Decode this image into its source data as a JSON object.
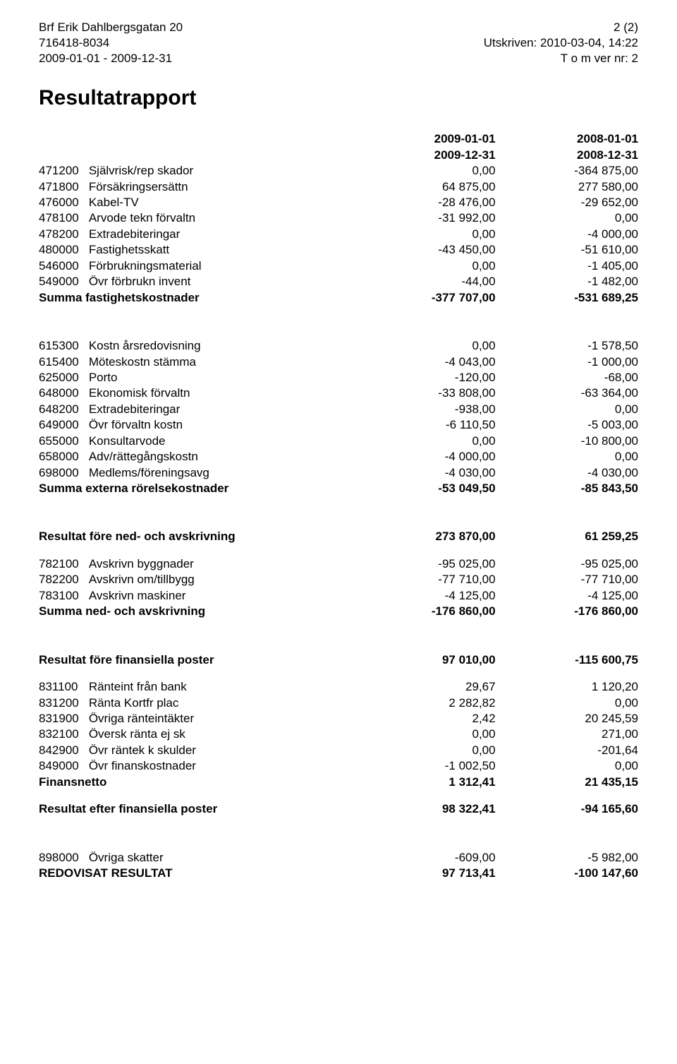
{
  "header": {
    "left1": "Brf Erik Dahlbergsgatan 20",
    "left2": "716418-8034",
    "left3": "2009-01-01 - 2009-12-31",
    "right1": "2 (2)",
    "right2": "Utskriven: 2010-03-04, 14:22",
    "right3": "T o m ver nr: 2"
  },
  "title": "Resultatrapport",
  "period_headers": {
    "col1_top": "2009-01-01",
    "col1_bot": "2009-12-31",
    "col2_top": "2008-01-01",
    "col2_bot": "2008-12-31"
  },
  "group1": {
    "rows": [
      {
        "code": "471200",
        "desc": "Självrisk/rep skador",
        "v1": "0,00",
        "v2": "-364 875,00"
      },
      {
        "code": "471800",
        "desc": "Försäkringsersättn",
        "v1": "64 875,00",
        "v2": "277 580,00"
      },
      {
        "code": "476000",
        "desc": "Kabel-TV",
        "v1": "-28 476,00",
        "v2": "-29 652,00"
      },
      {
        "code": "478100",
        "desc": "Arvode tekn förvaltn",
        "v1": "-31 992,00",
        "v2": "0,00"
      },
      {
        "code": "478200",
        "desc": "Extradebiteringar",
        "v1": "0,00",
        "v2": "-4 000,00"
      },
      {
        "code": "480000",
        "desc": "Fastighetsskatt",
        "v1": "-43 450,00",
        "v2": "-51 610,00"
      },
      {
        "code": "546000",
        "desc": "Förbrukningsmaterial",
        "v1": "0,00",
        "v2": "-1 405,00"
      },
      {
        "code": "549000",
        "desc": "Övr förbrukn invent",
        "v1": "-44,00",
        "v2": "-1 482,00"
      }
    ],
    "sum": {
      "desc": "Summa fastighetskostnader",
      "v1": "-377 707,00",
      "v2": "-531 689,25"
    }
  },
  "group2": {
    "rows": [
      {
        "code": "615300",
        "desc": "Kostn årsredovisning",
        "v1": "0,00",
        "v2": "-1 578,50"
      },
      {
        "code": "615400",
        "desc": "Möteskostn stämma",
        "v1": "-4 043,00",
        "v2": "-1 000,00"
      },
      {
        "code": "625000",
        "desc": "Porto",
        "v1": "-120,00",
        "v2": "-68,00"
      },
      {
        "code": "648000",
        "desc": "Ekonomisk förvaltn",
        "v1": "-33 808,00",
        "v2": "-63 364,00"
      },
      {
        "code": "648200",
        "desc": "Extradebiteringar",
        "v1": "-938,00",
        "v2": "0,00"
      },
      {
        "code": "649000",
        "desc": "Övr förvaltn kostn",
        "v1": "-6 110,50",
        "v2": "-5 003,00"
      },
      {
        "code": "655000",
        "desc": "Konsultarvode",
        "v1": "0,00",
        "v2": "-10 800,00"
      },
      {
        "code": "658000",
        "desc": "Adv/rättegångskostn",
        "v1": "-4 000,00",
        "v2": "0,00"
      },
      {
        "code": "698000",
        "desc": "Medlems/föreningsavg",
        "v1": "-4 030,00",
        "v2": "-4 030,00"
      }
    ],
    "sum": {
      "desc": "Summa externa rörelsekostnader",
      "v1": "-53 049,50",
      "v2": "-85 843,50"
    }
  },
  "group3": {
    "heading": {
      "desc": "Resultat före ned- och avskrivning",
      "v1": "273 870,00",
      "v2": "61 259,25"
    },
    "rows": [
      {
        "code": "782100",
        "desc": "Avskrivn byggnader",
        "v1": "-95 025,00",
        "v2": "-95 025,00"
      },
      {
        "code": "782200",
        "desc": "Avskrivn om/tillbygg",
        "v1": "-77 710,00",
        "v2": "-77 710,00"
      },
      {
        "code": "783100",
        "desc": "Avskrivn maskiner",
        "v1": "-4 125,00",
        "v2": "-4 125,00"
      }
    ],
    "sum": {
      "desc": "Summa ned- och avskrivning",
      "v1": "-176 860,00",
      "v2": "-176 860,00"
    }
  },
  "group4": {
    "heading": {
      "desc": "Resultat före finansiella poster",
      "v1": "97 010,00",
      "v2": "-115 600,75"
    },
    "rows": [
      {
        "code": "831100",
        "desc": "Ränteint från bank",
        "v1": "29,67",
        "v2": "1 120,20"
      },
      {
        "code": "831200",
        "desc": "Ränta Kortfr plac",
        "v1": "2 282,82",
        "v2": "0,00"
      },
      {
        "code": "831900",
        "desc": "Övriga ränteintäkter",
        "v1": "2,42",
        "v2": "20 245,59"
      },
      {
        "code": "832100",
        "desc": "Översk ränta ej sk",
        "v1": "0,00",
        "v2": "271,00"
      },
      {
        "code": "842900",
        "desc": "Övr räntek k skulder",
        "v1": "0,00",
        "v2": "-201,64"
      },
      {
        "code": "849000",
        "desc": "Övr finanskostnader",
        "v1": "-1 002,50",
        "v2": "0,00"
      }
    ],
    "sum": {
      "desc": "Finansnetto",
      "v1": "1 312,41",
      "v2": "21 435,15"
    },
    "post": {
      "desc": "Resultat efter finansiella poster",
      "v1": "98 322,41",
      "v2": "-94 165,60"
    }
  },
  "group5": {
    "rows": [
      {
        "code": "898000",
        "desc": "Övriga skatter",
        "v1": "-609,00",
        "v2": "-5 982,00"
      }
    ],
    "sum": {
      "desc": "REDOVISAT RESULTAT",
      "v1": "97 713,41",
      "v2": "-100 147,60"
    }
  }
}
